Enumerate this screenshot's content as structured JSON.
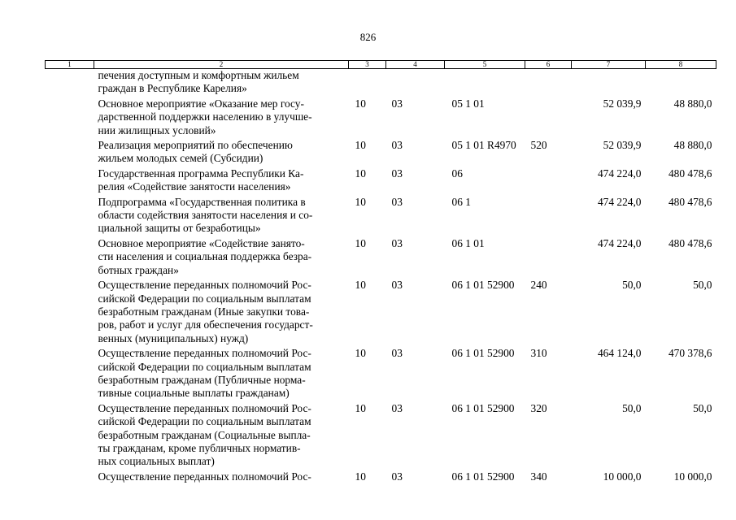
{
  "page_number": "826",
  "columns": [
    "1",
    "2",
    "3",
    "4",
    "5",
    "6",
    "7",
    "8"
  ],
  "rows": [
    {
      "lines": [
        "печения доступным и комфортным жильем",
        "граждан в Республике Карелия»"
      ],
      "c3": "",
      "c4": "",
      "c5": "",
      "c6": "",
      "c7": "",
      "c8": ""
    },
    {
      "lines": [
        "Основное мероприятие «Оказание мер госу-",
        "дарственной поддержки населению в улучше-",
        "нии жилищных условий»"
      ],
      "c3": "10",
      "c4": "03",
      "c5": "05 1 01",
      "c6": "",
      "c7": "52 039,9",
      "c8": "48 880,0"
    },
    {
      "lines": [
        "Реализация мероприятий по обеспечению",
        "жильем молодых семей (Субсидии)"
      ],
      "c3": "10",
      "c4": "03",
      "c5": "05 1 01 R4970",
      "c6": "520",
      "c7": "52 039,9",
      "c8": "48 880,0"
    },
    {
      "lines": [
        "Государственная программа Республики Ка-",
        "релия «Содействие занятости населения»"
      ],
      "c3": "10",
      "c4": "03",
      "c5": "06",
      "c6": "",
      "c7": "474 224,0",
      "c8": "480 478,6"
    },
    {
      "lines": [
        "Подпрограмма «Государственная политика в",
        "области содействия занятости населения и со-",
        "циальной защиты от безработицы»"
      ],
      "c3": "10",
      "c4": "03",
      "c5": "06 1",
      "c6": "",
      "c7": "474 224,0",
      "c8": "480 478,6"
    },
    {
      "lines": [
        "Основное мероприятие «Содействие занято-",
        "сти населения и социальная поддержка безра-",
        "ботных граждан»"
      ],
      "c3": "10",
      "c4": "03",
      "c5": "06 1 01",
      "c6": "",
      "c7": "474 224,0",
      "c8": "480 478,6"
    },
    {
      "lines": [
        "Осуществление переданных полномочий Рос-",
        "сийской Федерации по социальным выплатам",
        "безработным гражданам (Иные закупки това-",
        "ров, работ и услуг для обеспечения государст-",
        "венных (муниципальных) нужд)"
      ],
      "c3": "10",
      "c4": "03",
      "c5": "06 1 01 52900",
      "c6": "240",
      "c7": "50,0",
      "c8": "50,0"
    },
    {
      "lines": [
        "Осуществление переданных полномочий Рос-",
        "сийской Федерации по социальным выплатам",
        "безработным гражданам (Публичные норма-",
        "тивные социальные выплаты гражданам)"
      ],
      "c3": "10",
      "c4": "03",
      "c5": "06 1 01 52900",
      "c6": "310",
      "c7": "464 124,0",
      "c8": "470 378,6"
    },
    {
      "lines": [
        "Осуществление переданных полномочий Рос-",
        "сийской Федерации по социальным выплатам",
        "безработным гражданам (Социальные выпла-",
        "ты гражданам, кроме публичных норматив-",
        "ных социальных выплат)"
      ],
      "c3": "10",
      "c4": "03",
      "c5": "06 1 01 52900",
      "c6": "320",
      "c7": "50,0",
      "c8": "50,0"
    },
    {
      "lines": [
        "Осуществление переданных полномочий Рос-"
      ],
      "c3": "10",
      "c4": "03",
      "c5": "06 1 01 52900",
      "c6": "340",
      "c7": "10 000,0",
      "c8": "10 000,0"
    }
  ]
}
